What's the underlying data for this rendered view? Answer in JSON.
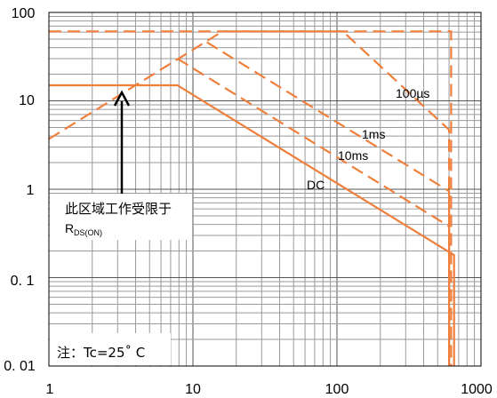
{
  "chart_data": {
    "type": "line",
    "title": "",
    "xlabel": "",
    "ylabel": "",
    "x_scale": "log",
    "y_scale": "log",
    "xlim": [
      1,
      1000
    ],
    "ylim": [
      0.01,
      100
    ],
    "grid": true,
    "x_ticks": [
      "1",
      "10",
      "100",
      "1000"
    ],
    "y_ticks": [
      "100",
      "10",
      "1",
      "0. 1",
      "0. 01"
    ],
    "line_color": "#F07F3C",
    "series": [
      {
        "name": "DC",
        "style": "solid",
        "points": [
          [
            1,
            15
          ],
          [
            7.8,
            15
          ],
          [
            650,
            0.18
          ],
          [
            650,
            0.01
          ]
        ]
      },
      {
        "name": "10ms",
        "style": "dashed",
        "points": [
          [
            7.8,
            30
          ],
          [
            600,
            0.38
          ],
          [
            600,
            0.01
          ]
        ]
      },
      {
        "name": "1ms",
        "style": "dashed",
        "points": [
          [
            12.5,
            46
          ],
          [
            600,
            0.95
          ],
          [
            600,
            0.01
          ]
        ]
      },
      {
        "name": "100µs",
        "style": "dashed",
        "points": [
          [
            1,
            61
          ],
          [
            110,
            61
          ],
          [
            600,
            4.7
          ],
          [
            600,
            0.01
          ]
        ]
      },
      {
        "name": "",
        "style": "dashed",
        "points": [
          [
            1,
            3.7
          ],
          [
            16,
            61
          ],
          [
            620,
            61
          ],
          [
            620,
            0.01
          ]
        ]
      }
    ],
    "annotations": {
      "label_dc": "DC",
      "label_10ms": "10ms",
      "label_1ms": "1ms",
      "label_100us": "100µs",
      "box_line1": "此区域工作受限于",
      "box_r": "R",
      "box_sub": "DS(ON)",
      "note": "注：Tc=25˚ C"
    }
  }
}
